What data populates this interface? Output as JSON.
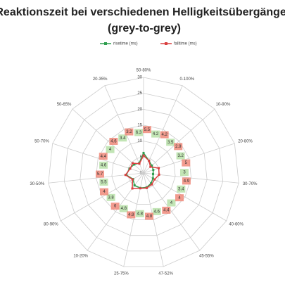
{
  "chart_data": {
    "type": "radar",
    "title": "Reaktionszeit bei verschiedenen Helligkeitsübergängen",
    "subtitle": "(grey-to-grey)",
    "categories": [
      "50-80%",
      "0-100%",
      "10-90%",
      "20-80%",
      "30-70%",
      "40-60%",
      "45-55%",
      "47-52%",
      "25-75%",
      "10-20%",
      "80-90%",
      "30-50%",
      "50-70%",
      "50-65%",
      "20-35%"
    ],
    "series": [
      {
        "name": "risetime (ms)",
        "color": "#2e9e4e",
        "values": [
          6.3,
          4.2,
          3.5,
          3.2,
          3.0,
          3.4,
          4.0,
          4.6,
          4.8,
          4.8,
          3.8,
          5.5,
          4.6,
          4.0,
          3.4
        ]
      },
      {
        "name": "falltime (ms)",
        "color": "#d94040",
        "values": [
          5.5,
          4.2,
          2.9,
          5,
          4.9,
          4,
          4.4,
          4.8,
          4.9,
          6,
          4,
          5.7,
          4.4,
          4.6,
          3.2
        ]
      }
    ],
    "ylim": [
      0,
      30
    ],
    "yticks": [
      0,
      5,
      10,
      15,
      20,
      25,
      30
    ],
    "grid": true,
    "legend": "top"
  }
}
